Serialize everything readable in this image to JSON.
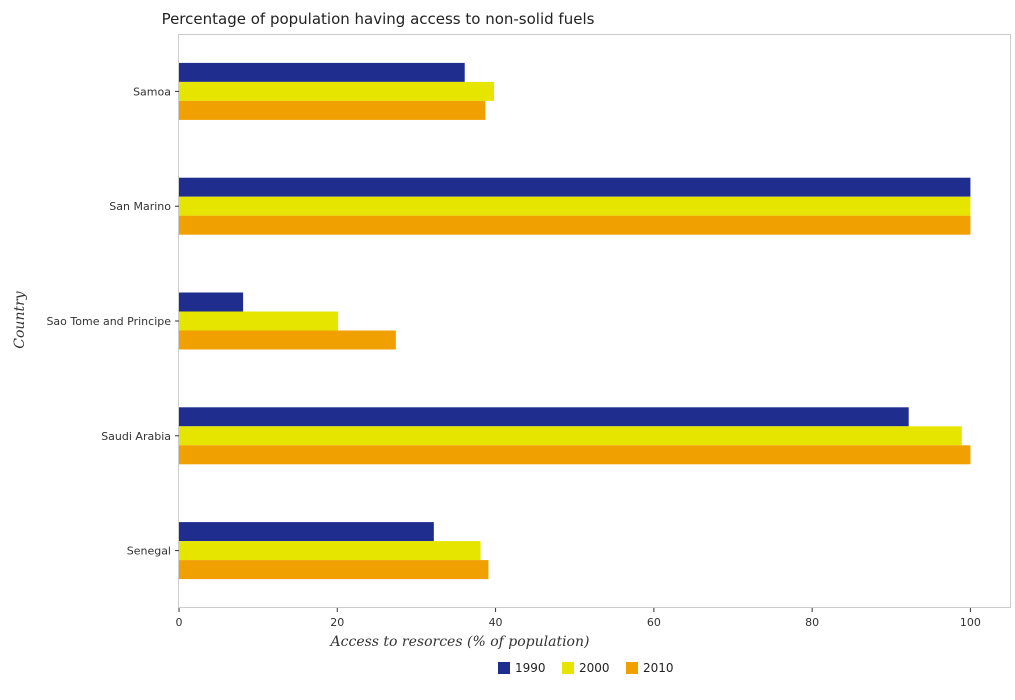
{
  "chart_data": {
    "type": "bar",
    "orientation": "horizontal",
    "title": "Percentage of population having access to non-solid fuels",
    "xlabel": "Access to resorces (% of population)",
    "ylabel": "Country",
    "xlim": [
      0,
      105
    ],
    "xticks": [
      0,
      20,
      40,
      60,
      80,
      100
    ],
    "categories": [
      "Samoa",
      "San Marino",
      "Sao Tome and Principe",
      "Saudi Arabia",
      "Senegal"
    ],
    "series": [
      {
        "name": "1990",
        "color": "#1f2d8f",
        "values": [
          36.1,
          100,
          8.1,
          92.2,
          32.2
        ]
      },
      {
        "name": "2000",
        "color": "#e5e500",
        "values": [
          39.8,
          100,
          20.1,
          98.9,
          38.1
        ]
      },
      {
        "name": "2010",
        "color": "#f0a000",
        "values": [
          38.7,
          100,
          27.4,
          100,
          39.1
        ]
      }
    ],
    "grid": false,
    "legend_position": "bottom-center"
  }
}
